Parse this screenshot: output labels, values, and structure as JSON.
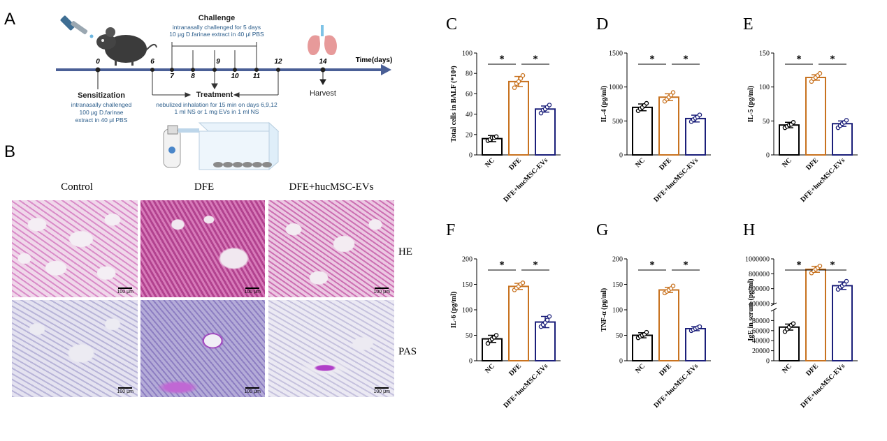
{
  "panels": {
    "A": "A",
    "B": "B"
  },
  "timeline": {
    "challenge_title": "Challenge",
    "challenge_line1": "intranasally challenged for 5 days",
    "challenge_line2": "10 μg D.farinae extract  in 40 μl PBS",
    "time_label": "Time(days)",
    "days": [
      "0",
      "6",
      "7",
      "8",
      "9",
      "10",
      "11",
      "12",
      "14"
    ],
    "sensitization_title": "Sensitization",
    "sensitization_line1": "intranasally challenged",
    "sensitization_line2": "100 μg D.farinae",
    "sensitization_line3": "extract in 40 μl PBS",
    "treatment_title": "Treatment",
    "treatment_line1": "nebulized inhalation for 15 min on days 6,9,12",
    "treatment_line2": "1 ml NS or 1 mg EVs in 1 ml NS",
    "harvest": "Harvest"
  },
  "histology": {
    "columns": [
      "Control",
      "DFE",
      "DFE+hucMSC-EVs"
    ],
    "rows": [
      "HE",
      "PAS"
    ],
    "scale": "100 μm"
  },
  "colors": {
    "NC": "#000000",
    "DFE": "#c8721f",
    "EVs": "#1b1f7a"
  },
  "chart_data": [
    {
      "panel": "C",
      "type": "bar",
      "ylabel": "Total cells in BALF (*10⁴)",
      "categories": [
        "NC",
        "DFE",
        "DFE+hucMSC-EVs"
      ],
      "values": [
        16,
        72,
        45
      ],
      "errors": [
        3,
        5,
        3
      ],
      "points": [
        [
          14,
          15,
          17,
          17,
          18
        ],
        [
          66,
          70,
          72,
          75,
          78
        ],
        [
          41,
          44,
          45,
          47,
          49
        ]
      ],
      "ylim": [
        0,
        100
      ],
      "ticks": [
        0,
        20,
        40,
        60,
        80,
        100
      ],
      "significance": [
        "*",
        "*"
      ]
    },
    {
      "panel": "D",
      "type": "bar",
      "ylabel": "IL-4 (pg/ml)",
      "categories": [
        "NC",
        "DFE",
        "DFE+hucMSC-EVs"
      ],
      "values": [
        700,
        850,
        535
      ],
      "errors": [
        50,
        50,
        50
      ],
      "points": [
        [
          650,
          680,
          700,
          730,
          760
        ],
        [
          790,
          820,
          850,
          880,
          920
        ],
        [
          490,
          520,
          540,
          560,
          590
        ]
      ],
      "ylim": [
        0,
        1500
      ],
      "ticks": [
        0,
        500,
        1000,
        1500
      ],
      "significance": [
        "*",
        "*"
      ]
    },
    {
      "panel": "E",
      "type": "bar",
      "ylabel": "IL-5 (pg/ml)",
      "categories": [
        "NC",
        "DFE",
        "DFE+hucMSC-EVs"
      ],
      "values": [
        44,
        114,
        46
      ],
      "errors": [
        4,
        4,
        4
      ],
      "points": [
        [
          40,
          42,
          44,
          45,
          48
        ],
        [
          108,
          112,
          114,
          117,
          120
        ],
        [
          40,
          43,
          46,
          48,
          51
        ]
      ],
      "ylim": [
        0,
        150
      ],
      "ticks": [
        0,
        50,
        100,
        150
      ],
      "significance": [
        "*",
        "*"
      ]
    },
    {
      "panel": "F",
      "type": "bar",
      "ylabel": "IL-6 (pg/ml)",
      "categories": [
        "NC",
        "DFE",
        "DFE+hucMSC-EVs"
      ],
      "values": [
        43,
        146,
        76
      ],
      "errors": [
        7,
        6,
        11
      ],
      "points": [
        [
          34,
          40,
          43,
          46,
          50
        ],
        [
          139,
          143,
          146,
          150,
          153
        ],
        [
          67,
          71,
          75,
          80,
          87
        ]
      ],
      "ylim": [
        0,
        200
      ],
      "ticks": [
        0,
        50,
        100,
        150,
        200
      ],
      "significance": [
        "*",
        "*"
      ]
    },
    {
      "panel": "G",
      "type": "bar",
      "ylabel": "TNF-α (pg/ml)",
      "categories": [
        "NC",
        "DFE",
        "DFE+hucMSC-EVs"
      ],
      "values": [
        50,
        139,
        63
      ],
      "errors": [
        5,
        5,
        4
      ],
      "points": [
        [
          45,
          48,
          50,
          52,
          56
        ],
        [
          133,
          136,
          139,
          142,
          147
        ],
        [
          59,
          61,
          63,
          65,
          67
        ]
      ],
      "ylim": [
        0,
        200
      ],
      "ticks": [
        0,
        50,
        100,
        150,
        200
      ],
      "significance": [
        "*",
        "*"
      ]
    },
    {
      "panel": "H",
      "type": "bar",
      "ylabel": "IgE in serum (pg/ml)",
      "broken_axis": true,
      "categories": [
        "NC",
        "DFE",
        "DFE+hucMSC-EVs"
      ],
      "values": [
        67000,
        860000,
        640000
      ],
      "errors": [
        6000,
        40000,
        50000
      ],
      "points": [
        [
          58000,
          63000,
          67000,
          71000,
          74000
        ],
        [
          810000,
          840000,
          860000,
          880000,
          905000
        ],
        [
          590000,
          620000,
          640000,
          660000,
          700000
        ]
      ],
      "ylim_lower": [
        0,
        100000
      ],
      "ylim_upper": [
        400000,
        1000000
      ],
      "ticks_lower": [
        0,
        20000,
        40000,
        60000,
        80000
      ],
      "ticks_upper": [
        400000,
        600000,
        800000,
        1000000
      ],
      "significance": [
        "*",
        "*"
      ]
    }
  ]
}
